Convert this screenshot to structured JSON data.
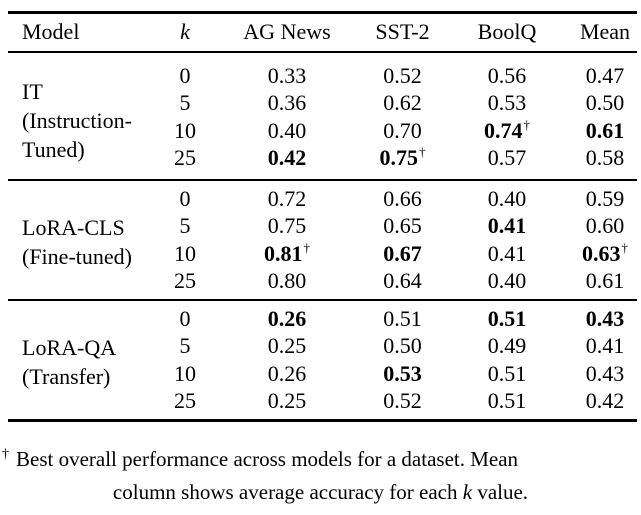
{
  "page": {
    "background_color": "#ffffff",
    "text_color": "#000000",
    "rule_color": "#000000"
  },
  "symbols": {
    "dagger": "†"
  },
  "table": {
    "headers": [
      {
        "label": "Model"
      },
      {
        "label": "k"
      },
      {
        "label": "AG News"
      },
      {
        "label": "SST-2"
      },
      {
        "label": "BoolQ"
      },
      {
        "label": "Mean"
      }
    ],
    "groups": [
      {
        "model_lines": [
          "IT",
          "(Instruction-",
          "Tuned)"
        ],
        "rows": [
          {
            "k": "0",
            "cells": [
              {
                "v": "0.33"
              },
              {
                "v": "0.52"
              },
              {
                "v": "0.56"
              },
              {
                "v": "0.47"
              }
            ]
          },
          {
            "k": "5",
            "cells": [
              {
                "v": "0.36"
              },
              {
                "v": "0.62"
              },
              {
                "v": "0.53"
              },
              {
                "v": "0.50"
              }
            ]
          },
          {
            "k": "10",
            "cells": [
              {
                "v": "0.40"
              },
              {
                "v": "0.70"
              },
              {
                "v": "0.74",
                "bold": true,
                "dagger": true
              },
              {
                "v": "0.61",
                "bold": true
              }
            ]
          },
          {
            "k": "25",
            "cells": [
              {
                "v": "0.42",
                "bold": true
              },
              {
                "v": "0.75",
                "bold": true,
                "dagger": true
              },
              {
                "v": "0.57"
              },
              {
                "v": "0.58"
              }
            ]
          }
        ]
      },
      {
        "model_lines": [
          "LoRA-CLS",
          "(Fine-tuned)"
        ],
        "rows": [
          {
            "k": "0",
            "cells": [
              {
                "v": "0.72"
              },
              {
                "v": "0.66"
              },
              {
                "v": "0.40"
              },
              {
                "v": "0.59"
              }
            ]
          },
          {
            "k": "5",
            "cells": [
              {
                "v": "0.75"
              },
              {
                "v": "0.65"
              },
              {
                "v": "0.41",
                "bold": true
              },
              {
                "v": "0.60"
              }
            ]
          },
          {
            "k": "10",
            "cells": [
              {
                "v": "0.81",
                "bold": true,
                "dagger": true
              },
              {
                "v": "0.67",
                "bold": true
              },
              {
                "v": "0.41"
              },
              {
                "v": "0.63",
                "bold": true,
                "dagger": true
              }
            ]
          },
          {
            "k": "25",
            "cells": [
              {
                "v": "0.80"
              },
              {
                "v": "0.64"
              },
              {
                "v": "0.40"
              },
              {
                "v": "0.61"
              }
            ]
          }
        ]
      },
      {
        "model_lines": [
          "LoRA-QA",
          "(Transfer)"
        ],
        "rows": [
          {
            "k": "0",
            "cells": [
              {
                "v": "0.26",
                "bold": true
              },
              {
                "v": "0.51"
              },
              {
                "v": "0.51",
                "bold": true
              },
              {
                "v": "0.43",
                "bold": true
              }
            ]
          },
          {
            "k": "5",
            "cells": [
              {
                "v": "0.25"
              },
              {
                "v": "0.50"
              },
              {
                "v": "0.49"
              },
              {
                "v": "0.41"
              }
            ]
          },
          {
            "k": "10",
            "cells": [
              {
                "v": "0.26"
              },
              {
                "v": "0.53",
                "bold": true
              },
              {
                "v": "0.51"
              },
              {
                "v": "0.43"
              }
            ]
          },
          {
            "k": "25",
            "cells": [
              {
                "v": "0.25"
              },
              {
                "v": "0.52"
              },
              {
                "v": "0.51"
              },
              {
                "v": "0.42"
              }
            ]
          }
        ]
      }
    ]
  },
  "footnote": {
    "marker": "†",
    "line1": "Best overall performance across models for a dataset. Mean",
    "line2": {
      "before_k": "column shows average accuracy for each ",
      "k": "k",
      "after_k": " value."
    }
  }
}
